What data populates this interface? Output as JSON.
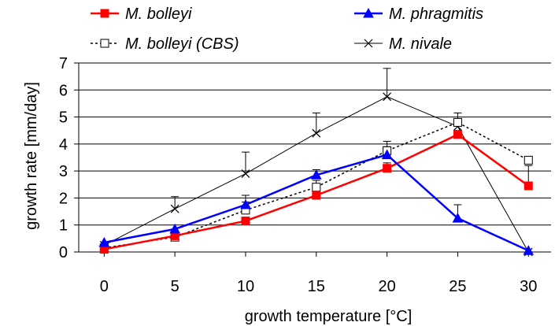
{
  "chart_data": {
    "type": "line",
    "title": "",
    "xlabel": "growth temperature [°C]",
    "ylabel": "growth rate [mm/day]",
    "x": [
      0,
      5,
      10,
      15,
      20,
      25,
      30
    ],
    "xlim": [
      -1.8,
      31.6
    ],
    "ylim": [
      0,
      7
    ],
    "yticks": [
      0,
      1,
      2,
      3,
      4,
      5,
      6,
      7
    ],
    "grid": "horizontal",
    "legend_position": "top",
    "series": [
      {
        "name": "M. bolleyi",
        "color": "#ff0000",
        "line": "solid",
        "width": 2.5,
        "marker": "square-filled",
        "values": [
          0.1,
          0.6,
          1.15,
          2.1,
          3.1,
          4.35,
          2.45
        ],
        "error": [
          0,
          0,
          0.1,
          0.15,
          0.2,
          0.15,
          0.75
        ]
      },
      {
        "name": "M. phragmitis",
        "color": "#0000ff",
        "line": "solid",
        "width": 2.5,
        "marker": "triangle-filled",
        "values": [
          0.35,
          0.85,
          1.75,
          2.85,
          3.6,
          1.25,
          0.05
        ],
        "error": [
          0,
          0,
          0.35,
          0.2,
          0.3,
          0.5,
          0
        ]
      },
      {
        "name": "M. bolleyi (CBS)",
        "color": "#000000",
        "line": "dotted",
        "width": 1.5,
        "marker": "square-open",
        "values": [
          0.15,
          0.55,
          1.55,
          2.4,
          3.75,
          4.8,
          3.4
        ],
        "error": [
          0,
          0,
          0.3,
          0.25,
          0.35,
          0.35,
          0
        ]
      },
      {
        "name": "M. nivale",
        "color": "#000000",
        "line": "solid",
        "width": 1,
        "marker": "x",
        "values": [
          0.25,
          1.6,
          2.9,
          4.4,
          5.75,
          4.65,
          0.0
        ],
        "error": [
          0,
          0.45,
          0.8,
          0.75,
          1.05,
          0.25,
          0
        ]
      }
    ]
  }
}
